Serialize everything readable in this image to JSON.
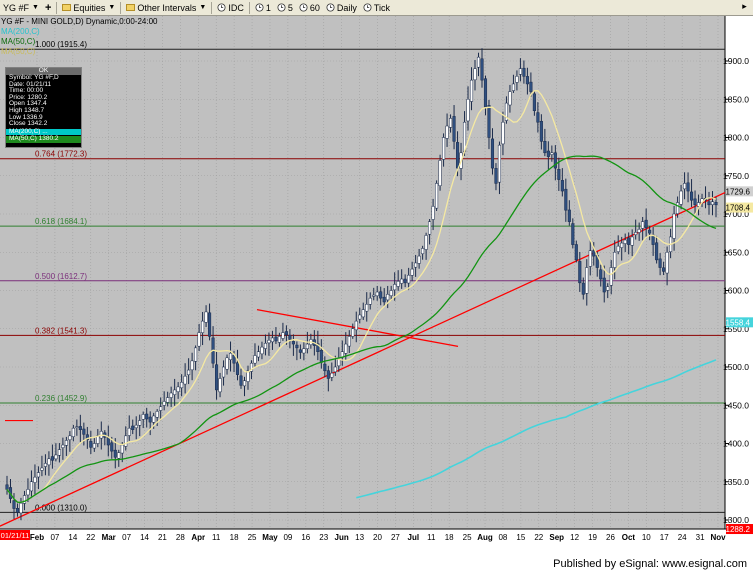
{
  "toolbar": {
    "symbol_label": "YG #F",
    "equities_label": "Equities",
    "other_intervals_label": "Other Intervals",
    "idc_label": "IDC",
    "interval_1_label": "1",
    "interval_5_label": "5",
    "interval_60_label": "60",
    "daily_label": "Daily",
    "tick_label": "Tick"
  },
  "legend": {
    "title": "YG #F - MINI GOLD,D) Dynamic,0:00-24:00",
    "line2": "MA(200,C)",
    "line3": "MA(50,C)",
    "line4": "MA(50,C)"
  },
  "info_box": {
    "header": "OK",
    "symbol": "Symbol: YG #F,D",
    "date": "Date: 01/21/11",
    "time": "Time: 00:00",
    "price": "Price: 1280.2",
    "open": "Open 1347.4",
    "high": "High 1348.7",
    "low": "Low 1336.9",
    "close": "Close 1342.2",
    "ma200": "MA(200,C) ...",
    "ma50": "MA(50,C) 1380.2"
  },
  "footer": {
    "text": "Published by eSignal: www.esignal.com"
  },
  "colors": {
    "background": "#c0c0c0",
    "candle_up": "#ffffff",
    "candle_down": "#2f4f7f",
    "ma_fast": "#f5e9a2",
    "ma_50": "#129412",
    "ma_200": "#45d4dc",
    "fib_line": "#000000",
    "trendline": "#ff0000"
  },
  "chart_data": {
    "type": "candlestick",
    "title": "YG #F - MINI GOLD,D) Dynamic,0:00-24:00",
    "ylim": [
      1290,
      1960
    ],
    "y_ticks": [
      1300,
      1350,
      1400,
      1450,
      1500,
      1550,
      1600,
      1650,
      1700,
      1750,
      1800,
      1850,
      1900
    ],
    "x_tick_labels": [
      "Feb",
      "07",
      "14",
      "22",
      "Mar",
      "07",
      "14",
      "21",
      "28",
      "Apr",
      "11",
      "18",
      "25",
      "May",
      "09",
      "16",
      "23",
      "Jun",
      "13",
      "20",
      "27",
      "Jul",
      "11",
      "18",
      "25",
      "Aug",
      "08",
      "15",
      "22",
      "Sep",
      "12",
      "19",
      "26",
      "Oct",
      "10",
      "17",
      "24",
      "31",
      "Nov"
    ],
    "first_date_label": "01/21/11",
    "fibonacci_levels": [
      {
        "label": "1.000 (1915.4)",
        "value": 1915.4
      },
      {
        "label": "0.764 (1772.3)",
        "value": 1772.3
      },
      {
        "label": "0.618 (1684.1)",
        "value": 1684.1
      },
      {
        "label": "0.500 (1612.7)",
        "value": 1612.7
      },
      {
        "label": "0.382 (1541.3)",
        "value": 1541.3
      },
      {
        "label": "0.236 (1452.9)",
        "value": 1452.9
      },
      {
        "label": "0.000 (1310.0)",
        "value": 1310.0
      }
    ],
    "price_markers": [
      {
        "label": "1729.6",
        "value": 1729.6
      },
      {
        "label": "1708.4",
        "value": 1708.4
      },
      {
        "label": "1558.4",
        "value": 1558.4
      },
      {
        "label": "1288.2",
        "value": 1288.2
      }
    ],
    "closes": [
      1340,
      1328,
      1315,
      1310,
      1322,
      1332,
      1340,
      1350,
      1356,
      1362,
      1368,
      1374,
      1380,
      1378,
      1385,
      1392,
      1398,
      1404,
      1410,
      1420,
      1422,
      1418,
      1412,
      1405,
      1395,
      1400,
      1410,
      1416,
      1408,
      1398,
      1390,
      1382,
      1388,
      1398,
      1410,
      1420,
      1418,
      1424,
      1430,
      1438,
      1432,
      1428,
      1436,
      1442,
      1448,
      1455,
      1460,
      1466,
      1470,
      1474,
      1480,
      1488,
      1496,
      1508,
      1525,
      1545,
      1560,
      1572,
      1540,
      1505,
      1470,
      1485,
      1500,
      1512,
      1518,
      1505,
      1490,
      1476,
      1482,
      1495,
      1505,
      1515,
      1520,
      1526,
      1531,
      1535,
      1538,
      1534,
      1540,
      1545,
      1542,
      1536,
      1530,
      1525,
      1519,
      1524,
      1530,
      1536,
      1528,
      1520,
      1506,
      1495,
      1485,
      1492,
      1500,
      1510,
      1520,
      1530,
      1540,
      1550,
      1560,
      1568,
      1575,
      1582,
      1590,
      1594,
      1598,
      1590,
      1585,
      1595,
      1600,
      1608,
      1612,
      1615,
      1610,
      1620,
      1628,
      1636,
      1645,
      1655,
      1672,
      1690,
      1710,
      1740,
      1770,
      1800,
      1815,
      1825,
      1795,
      1760,
      1780,
      1820,
      1850,
      1875,
      1890,
      1905,
      1875,
      1840,
      1800,
      1760,
      1740,
      1790,
      1820,
      1845,
      1860,
      1870,
      1880,
      1890,
      1880,
      1870,
      1860,
      1835,
      1820,
      1795,
      1780,
      1775,
      1780,
      1760,
      1745,
      1730,
      1705,
      1690,
      1660,
      1640,
      1610,
      1595,
      1630,
      1652,
      1645,
      1630,
      1615,
      1598,
      1605,
      1630,
      1650,
      1658,
      1662,
      1666,
      1660,
      1670,
      1676,
      1680,
      1690,
      1682,
      1675,
      1660,
      1640,
      1630,
      1625,
      1650,
      1670,
      1700,
      1715,
      1730,
      1740,
      1730,
      1718,
      1712,
      1715,
      1720,
      1718,
      1712,
      1716,
      1712
    ]
  }
}
